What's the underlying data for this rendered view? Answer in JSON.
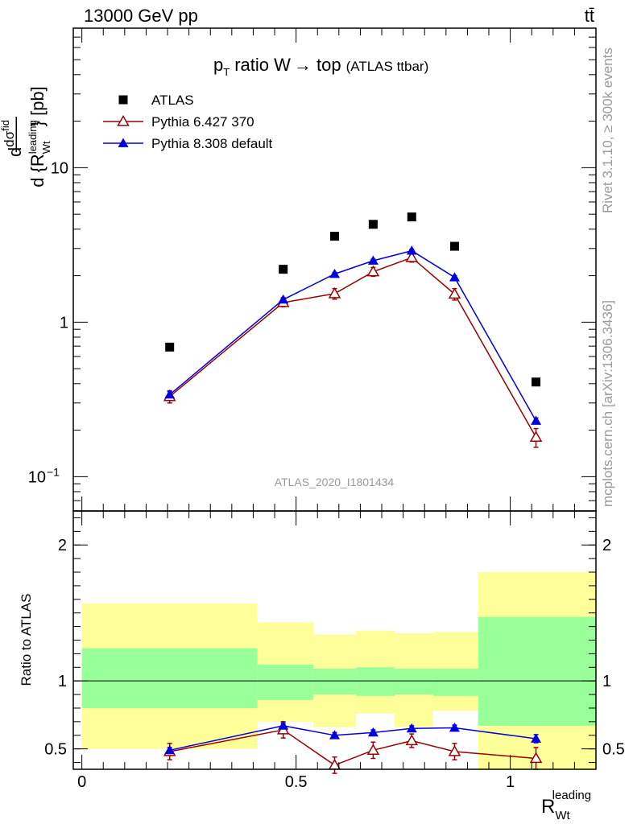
{
  "header": {
    "energy": "13000 GeV pp",
    "process": "tt̄"
  },
  "side_labels": {
    "rivet": "Rivet 3.1.10, ≥ 300k events",
    "mcplots": "mcplots.cern.ch [arXiv:1306.3436]"
  },
  "chart_data": [
    {
      "type": "scatter",
      "title": "p_T ratio W → top (ATLAS ttbar)",
      "title_main": "ratio W",
      "title_pt": "p",
      "title_pt_sub": "T",
      "title_arrow": "→ top",
      "title_small": "(ATLAS ttbar)",
      "analysis_label": "ATLAS_2020_I1801434",
      "ylabel": "d dσ^fid / d {R_Wt^leading} [pb]",
      "y_scale": "log",
      "ylim": [
        0.06,
        80
      ],
      "xlim": [
        -0.02,
        1.2
      ],
      "y_ticks": [
        {
          "value": 0.1,
          "label": "10",
          "exp": "−1"
        },
        {
          "value": 1,
          "label": "1"
        },
        {
          "value": 10,
          "label": "10"
        }
      ],
      "legend": {
        "placement": "top-left",
        "entries": [
          "ATLAS",
          "Pythia 6.427 370",
          "Pythia 8.308 default"
        ]
      },
      "series": [
        {
          "name": "ATLAS",
          "marker": "square",
          "color": "#000000",
          "x": [
            0.205,
            0.47,
            0.59,
            0.68,
            0.77,
            0.87,
            1.06
          ],
          "y": [
            0.69,
            2.2,
            3.6,
            4.3,
            4.8,
            3.1,
            0.41
          ]
        },
        {
          "name": "Pythia 6.427 370",
          "marker": "open-triangle",
          "color": "#990000",
          "x": [
            0.205,
            0.47,
            0.59,
            0.68,
            0.77,
            0.87,
            1.06
          ],
          "y": [
            0.33,
            1.34,
            1.53,
            2.12,
            2.62,
            1.52,
            0.18
          ],
          "err": [
            0.03,
            0.08,
            0.12,
            0.14,
            0.17,
            0.13,
            0.025
          ]
        },
        {
          "name": "Pythia 8.308 default",
          "marker": "triangle",
          "color": "#0000dd",
          "x": [
            0.205,
            0.47,
            0.59,
            0.68,
            0.77,
            0.87,
            1.06
          ],
          "y": [
            0.34,
            1.4,
            2.05,
            2.5,
            2.9,
            1.95,
            0.23
          ],
          "err": [
            0.015,
            0.04,
            0.05,
            0.06,
            0.06,
            0.05,
            0.01
          ]
        }
      ]
    },
    {
      "type": "scatter",
      "ylabel": "Ratio to ATLAS",
      "xlabel": "R",
      "xlabel_sub": "Wt",
      "xlabel_sup": "leading",
      "xlim": [
        -0.02,
        1.2
      ],
      "ylim": [
        0.35,
        2.25
      ],
      "x_ticks": [
        {
          "value": 0,
          "label": "0"
        },
        {
          "value": 0.5,
          "label": "0.5"
        },
        {
          "value": 1,
          "label": "1"
        }
      ],
      "y_ticks": [
        {
          "value": 0.5,
          "label": "0.5"
        },
        {
          "value": 1,
          "label": "1"
        },
        {
          "value": 2,
          "label": "2"
        }
      ],
      "bands": [
        {
          "x0": 0.0,
          "x1": 0.41,
          "yellow": [
            0.5,
            1.57
          ],
          "green": [
            0.8,
            1.24
          ]
        },
        {
          "x0": 0.41,
          "x1": 0.54,
          "yellow": [
            0.7,
            1.43
          ],
          "green": [
            0.86,
            1.12
          ]
        },
        {
          "x0": 0.54,
          "x1": 0.64,
          "yellow": [
            0.66,
            1.34
          ],
          "green": [
            0.9,
            1.09
          ]
        },
        {
          "x0": 0.64,
          "x1": 0.73,
          "yellow": [
            0.76,
            1.37
          ],
          "green": [
            0.89,
            1.1
          ]
        },
        {
          "x0": 0.73,
          "x1": 0.82,
          "yellow": [
            0.66,
            1.35
          ],
          "green": [
            0.9,
            1.09
          ]
        },
        {
          "x0": 0.82,
          "x1": 0.925,
          "yellow": [
            0.78,
            1.36
          ],
          "green": [
            0.89,
            1.09
          ]
        },
        {
          "x0": 0.925,
          "x1": 1.2,
          "yellow": [
            0.3,
            1.8
          ],
          "green": [
            0.67,
            1.47
          ]
        }
      ],
      "reference_line": 1,
      "series": [
        {
          "name": "Pythia 6.427 370",
          "marker": "open-triangle",
          "color": "#990000",
          "x": [
            0.205,
            0.47,
            0.59,
            0.68,
            0.77,
            0.87,
            1.06
          ],
          "y": [
            0.48,
            0.64,
            0.38,
            0.49,
            0.56,
            0.48,
            0.43
          ],
          "err": [
            0.06,
            0.06,
            0.06,
            0.06,
            0.05,
            0.06,
            0.08
          ]
        },
        {
          "name": "Pythia 8.308 default",
          "marker": "triangle",
          "color": "#0000dd",
          "x": [
            0.205,
            0.47,
            0.59,
            0.68,
            0.77,
            0.87,
            1.06
          ],
          "y": [
            0.49,
            0.67,
            0.6,
            0.62,
            0.65,
            0.655,
            0.575
          ],
          "err": [
            0.02,
            0.02,
            0.02,
            0.02,
            0.02,
            0.02,
            0.03
          ]
        }
      ]
    }
  ]
}
